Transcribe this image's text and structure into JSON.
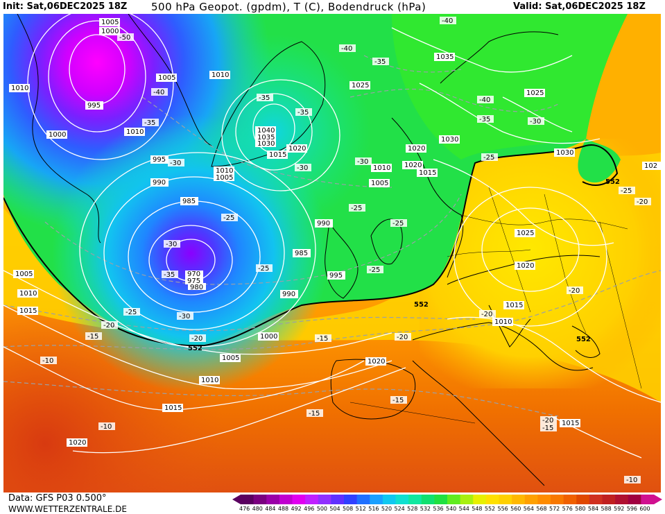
{
  "header": {
    "init": "Init: Sat,06DEC2025 18Z",
    "title": "500 hPa Geopot. (gpdm), T (C), Bodendruck (hPa)",
    "valid": "Valid: Sat,06DEC2025 18Z"
  },
  "footer": {
    "data_source": "Data: GFS P03 0.500°",
    "website": "WWW.WETTERZENTRALE.DE"
  },
  "colorbar": {
    "ticks": [
      "476",
      "480",
      "484",
      "488",
      "492",
      "496",
      "500",
      "504",
      "508",
      "512",
      "516",
      "520",
      "524",
      "528",
      "532",
      "536",
      "540",
      "544",
      "548",
      "552",
      "556",
      "560",
      "564",
      "568",
      "572",
      "576",
      "580",
      "584",
      "588",
      "592",
      "596",
      "600"
    ],
    "colors": [
      "#5a0060",
      "#7a0080",
      "#9a00a8",
      "#c000d0",
      "#e000f0",
      "#c020ff",
      "#9030ff",
      "#6030ff",
      "#3040ff",
      "#2070ff",
      "#1aa0ff",
      "#10c8f0",
      "#10e0d0",
      "#10e8a0",
      "#10e070",
      "#20e040",
      "#60ec20",
      "#a8f010",
      "#e8f000",
      "#ffe000",
      "#ffd000",
      "#ffb800",
      "#ffa000",
      "#ff8c00",
      "#f87800",
      "#f06000",
      "#e04800",
      "#d03020",
      "#c02020",
      "#b01030",
      "#a00040",
      "#d01090"
    ]
  },
  "map_labels": {
    "pressure": [
      "1005",
      "1000",
      "1010",
      "995",
      "1005",
      "1010",
      "1000",
      "1010",
      "995",
      "990",
      "985",
      "970",
      "975",
      "980",
      "1040",
      "1035",
      "1030",
      "1025",
      "1020",
      "1015",
      "1010",
      "1005",
      "1020",
      "1010",
      "1015",
      "1020",
      "1005",
      "990",
      "985",
      "995",
      "990",
      "1000",
      "1005",
      "1010",
      "1015",
      "1020",
      "1035",
      "1025",
      "1030",
      "1025",
      "1030",
      "1025",
      "1020",
      "1015",
      "1010",
      "1015",
      "1005",
      "1010",
      "1015",
      "1020",
      "1020",
      "1015",
      "102"
    ],
    "temperature": [
      "-50",
      "-40",
      "-35",
      "-30",
      "-35",
      "-30",
      "-25",
      "-25",
      "-30",
      "-35",
      "-30",
      "-25",
      "-25",
      "-20",
      "-15",
      "-10",
      "-40",
      "-35",
      "-35",
      "-30",
      "-25",
      "-25",
      "-20",
      "-20",
      "-15",
      "-15",
      "-20",
      "-40",
      "-35",
      "-40",
      "-35",
      "-30",
      "-25",
      "-25",
      "-20",
      "-20",
      "-20",
      "-15",
      "-10",
      "-10",
      "-25",
      "-20",
      "-15",
      "-20"
    ],
    "heights": [
      "552",
      "552",
      "552",
      "552"
    ]
  },
  "colors": {
    "land_border": "#000000",
    "isobar": "#ffffff",
    "isotherm": "#9aa0a8"
  }
}
